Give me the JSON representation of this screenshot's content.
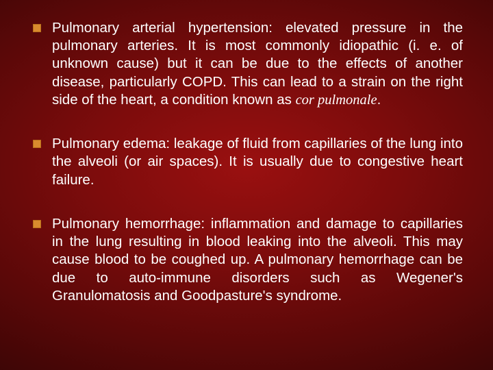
{
  "slide": {
    "background": {
      "gradient_center": "#9a1010",
      "gradient_mid": "#7d0c0c",
      "gradient_outer": "#5a0808",
      "gradient_edge": "#3a0505"
    },
    "text_color": "#ffffff",
    "bullet_color": "#d98b2e",
    "bullet_border": "#b86f1a",
    "font_family": "Arial, Helvetica, sans-serif",
    "font_size_pt": 15,
    "line_height": 1.28,
    "text_align": "justify",
    "bullets": [
      {
        "text_pre": "Pulmonary arterial hypertension: elevated pressure in the pulmonary arteries. It is most commonly idiopathic (i. e. of unknown cause) but it can be due to the effects of another disease, particularly COPD. This can lead to a strain on the right side of the heart, a condition known as ",
        "text_italic": "cor pulmonale",
        "text_post": "."
      },
      {
        "text_pre": "Pulmonary edema: leakage of fluid from capillaries of the lung into the alveoli (or air spaces). It is usually due to congestive heart failure.",
        "text_italic": "",
        "text_post": ""
      },
      {
        "text_pre": "Pulmonary hemorrhage: inflammation and damage to capillaries in the lung resulting in blood leaking into the alveoli. This may cause blood to be coughed up. A pulmonary hemorrhage can be due to auto-immune disorders such as Wegener's Granulomatosis and Goodpasture's syndrome.",
        "text_italic": "",
        "text_post": ""
      }
    ]
  }
}
